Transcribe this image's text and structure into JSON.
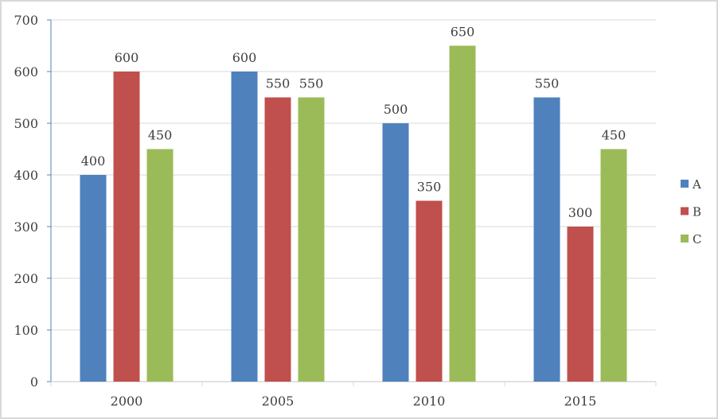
{
  "chart_data": {
    "type": "bar",
    "title": "",
    "xlabel": "",
    "ylabel": "",
    "categories": [
      "2000",
      "2005",
      "2010",
      "2015"
    ],
    "series": [
      {
        "name": "A",
        "color": "#4F81BD",
        "values": [
          400,
          600,
          500,
          550
        ]
      },
      {
        "name": "B",
        "color": "#C0504D",
        "values": [
          600,
          550,
          350,
          300
        ]
      },
      {
        "name": "C",
        "color": "#9BBB59",
        "values": [
          450,
          550,
          650,
          450
        ]
      }
    ],
    "ylim": [
      0,
      700
    ],
    "yticks": [
      0,
      100,
      200,
      300,
      400,
      500,
      600,
      700
    ],
    "grid": true,
    "data_labels": true,
    "legend_position": "right"
  }
}
